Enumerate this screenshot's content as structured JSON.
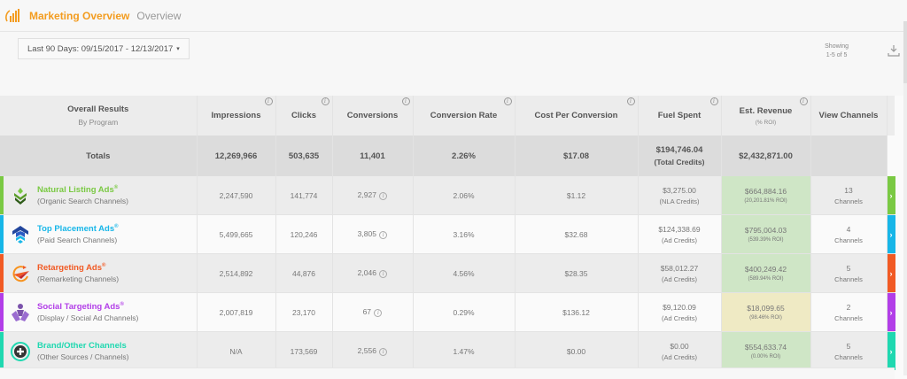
{
  "header": {
    "app_title": "Marketing Overview",
    "breadcrumb": "Overview",
    "logo_icon": "bar-chart-signal-icon",
    "accent_color": "#f39c1f"
  },
  "filter": {
    "date_range_label": "Last 90 Days: 09/15/2017 - 12/13/2017",
    "caret": "▾"
  },
  "pagination": {
    "showing_label": "Showing",
    "range": "1-5 of 5",
    "download_icon": "download-icon"
  },
  "table": {
    "columns": [
      {
        "label": "Overall Results",
        "sub": "By Program",
        "info": false
      },
      {
        "label": "Impressions",
        "info": true
      },
      {
        "label": "Clicks",
        "info": true
      },
      {
        "label": "Conversions",
        "info": true
      },
      {
        "label": "Conversion Rate",
        "info": true
      },
      {
        "label": "Cost Per Conversion",
        "info": true
      },
      {
        "label": "Fuel Spent",
        "info": true
      },
      {
        "label": "Est. Revenue",
        "sub": "(% ROI)",
        "info": true
      },
      {
        "label": "View Channels",
        "info": false
      }
    ],
    "totals": {
      "label": "Totals",
      "impressions": "12,269,966",
      "clicks": "503,635",
      "conversions": "11,401",
      "conversion_rate": "2.26%",
      "cost_per_conversion": "$17.08",
      "fuel_spent": "$194,746.04",
      "fuel_spent_sub": "(Total Credits)",
      "est_revenue": "$2,432,871.00",
      "view_channels": ""
    },
    "rows": [
      {
        "name": "Natural Listing Ads",
        "reg": "®",
        "desc": "(Organic Search Channels)",
        "color": "#7ac943",
        "icon": "leaf-sprout-icon",
        "impressions": "2,247,590",
        "clicks": "141,774",
        "conversions": "2,927",
        "conversion_rate": "2.06%",
        "cost_per_conversion": "$1.12",
        "fuel_spent": "$3,275.00",
        "fuel_sub": "(NLA Credits)",
        "est_revenue": "$664,884.16",
        "roi": "(20,201.81% ROI)",
        "rev_bg": "green",
        "channels_count": "13",
        "channels_label": "Channels",
        "arrow": "›"
      },
      {
        "name": "Top Placement Ads",
        "reg": "®",
        "desc": "(Paid Search Channels)",
        "color": "#17b6e8",
        "icon": "stacked-arrows-up-icon",
        "impressions": "5,499,665",
        "clicks": "120,246",
        "conversions": "3,805",
        "conversion_rate": "3.16%",
        "cost_per_conversion": "$32.68",
        "fuel_spent": "$124,338.69",
        "fuel_sub": "(Ad Credits)",
        "est_revenue": "$795,004.03",
        "roi": "(539.39% ROI)",
        "rev_bg": "green",
        "channels_count": "4",
        "channels_label": "Channels",
        "arrow": "›"
      },
      {
        "name": "Retargeting Ads",
        "reg": "®",
        "desc": "(Remarketing Channels)",
        "color": "#f15a24",
        "icon": "paper-plane-loop-icon",
        "impressions": "2,514,892",
        "clicks": "44,876",
        "conversions": "2,046",
        "conversion_rate": "4.56%",
        "cost_per_conversion": "$28.35",
        "fuel_spent": "$58,012.27",
        "fuel_sub": "(Ad Credits)",
        "est_revenue": "$400,249.42",
        "roi": "(589.94% ROI)",
        "rev_bg": "green",
        "channels_count": "5",
        "channels_label": "Channels",
        "arrow": "›"
      },
      {
        "name": "Social Targeting Ads",
        "reg": "®",
        "desc": "(Display / Social Ad Channels)",
        "color": "#b23ee8",
        "icon": "person-network-icon",
        "impressions": "2,007,819",
        "clicks": "23,170",
        "conversions": "67",
        "conversion_rate": "0.29%",
        "cost_per_conversion": "$136.12",
        "fuel_spent": "$9,120.09",
        "fuel_sub": "(Ad Credits)",
        "est_revenue": "$18,099.65",
        "roi": "(98.46% ROI)",
        "rev_bg": "yellow",
        "channels_count": "2",
        "channels_label": "Channels",
        "arrow": "›"
      },
      {
        "name": "Brand/Other Channels",
        "reg": "",
        "desc": "(Other Sources / Channels)",
        "color": "#1fd8b0",
        "icon": "plus-circle-icon",
        "impressions": "N/A",
        "clicks": "173,569",
        "conversions": "2,556",
        "conversion_rate": "1.47%",
        "cost_per_conversion": "$0.00",
        "fuel_spent": "$0.00",
        "fuel_sub": "(Ad Credits)",
        "est_revenue": "$554,633.74",
        "roi": "(0.00% ROI)",
        "rev_bg": "green",
        "channels_count": "5",
        "channels_label": "Channels",
        "arrow": "›"
      }
    ]
  }
}
